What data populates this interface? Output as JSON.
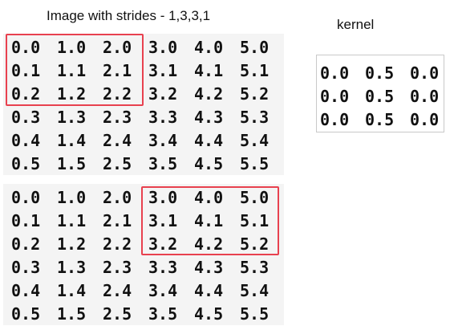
{
  "title": "Image with strides - 1,3,3,1",
  "kernel_title": "kernel",
  "image_top": [
    [
      "0.0",
      "1.0",
      "2.0",
      "3.0",
      "4.0",
      "5.0"
    ],
    [
      "0.1",
      "1.1",
      "2.1",
      "3.1",
      "4.1",
      "5.1"
    ],
    [
      "0.2",
      "1.2",
      "2.2",
      "3.2",
      "4.2",
      "5.2"
    ],
    [
      "0.3",
      "1.3",
      "2.3",
      "3.3",
      "4.3",
      "5.3"
    ],
    [
      "0.4",
      "1.4",
      "2.4",
      "3.4",
      "4.4",
      "5.4"
    ],
    [
      "0.5",
      "1.5",
      "2.5",
      "3.5",
      "4.5",
      "5.5"
    ]
  ],
  "image_bottom": [
    [
      "0.0",
      "1.0",
      "2.0",
      "3.0",
      "4.0",
      "5.0"
    ],
    [
      "0.1",
      "1.1",
      "2.1",
      "3.1",
      "4.1",
      "5.1"
    ],
    [
      "0.2",
      "1.2",
      "2.2",
      "3.2",
      "4.2",
      "5.2"
    ],
    [
      "0.3",
      "1.3",
      "2.3",
      "3.3",
      "4.3",
      "5.3"
    ],
    [
      "0.4",
      "1.4",
      "2.4",
      "3.4",
      "4.4",
      "5.4"
    ],
    [
      "0.5",
      "1.5",
      "2.5",
      "3.5",
      "4.5",
      "5.5"
    ]
  ],
  "kernel": [
    [
      "0.0",
      "0.5",
      "0.0"
    ],
    [
      "0.0",
      "0.5",
      "0.0"
    ],
    [
      "0.0",
      "0.5",
      "0.0"
    ]
  ],
  "highlight_color": "#e8414f",
  "highlight_top": {
    "rows": [
      0,
      2
    ],
    "cols": [
      0,
      2
    ]
  },
  "highlight_bottom": {
    "rows": [
      0,
      2
    ],
    "cols": [
      3,
      5
    ]
  }
}
